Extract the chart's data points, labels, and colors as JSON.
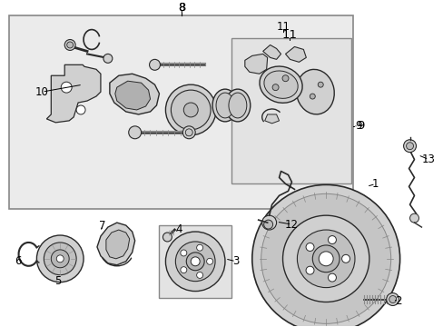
{
  "bg_color": "#ffffff",
  "fig_width": 4.89,
  "fig_height": 3.6,
  "dpi": 100,
  "part_color": "#2a2a2a",
  "light_gray": "#d0d0d0",
  "mid_gray": "#b0b0b0",
  "box_bg": "#e8e8e8",
  "font_size": 8.5,
  "title": "8"
}
